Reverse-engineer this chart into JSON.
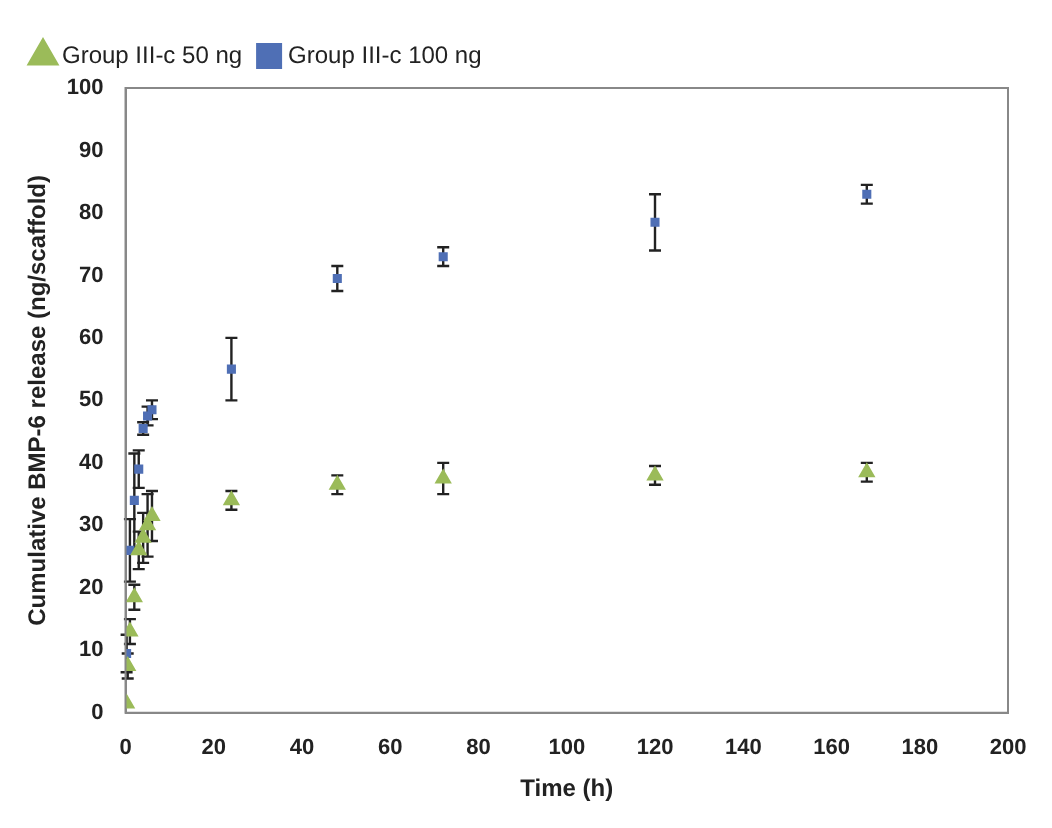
{
  "chart_data": {
    "type": "scatter",
    "xlabel": "Time (h)",
    "ylabel": "Cumulative BMP-6 release (ng/scaffold)",
    "xlim": [
      0,
      200
    ],
    "xticks": [
      0,
      20,
      40,
      60,
      80,
      100,
      120,
      140,
      160,
      180,
      200
    ],
    "ylim": [
      0,
      100
    ],
    "yticks": [
      0,
      10,
      20,
      30,
      40,
      50,
      60,
      70,
      80,
      90,
      100
    ],
    "grid": false,
    "legend": "top left",
    "series": [
      {
        "name": "Group III-c 50 ng",
        "color": "#9bbb59",
        "marker": "triangle",
        "x": [
          0.25,
          0.5,
          1,
          2,
          3,
          4,
          5,
          6,
          24,
          48,
          72,
          120,
          168
        ],
        "values": [
          1.5,
          7.5,
          13,
          18.5,
          26,
          28,
          30,
          31.5,
          34,
          36.5,
          37.5,
          38,
          38.5
        ],
        "errors": [
          null,
          2,
          2,
          2,
          3,
          4,
          5,
          4,
          1.5,
          1.5,
          2.5,
          1.5,
          1.5
        ]
      },
      {
        "name": "Group III-c 100 ng",
        "color": "#4f6fb5",
        "marker": "square",
        "x": [
          0.25,
          0.75,
          1,
          2,
          3,
          4,
          5,
          6,
          24,
          48,
          72,
          120,
          168
        ],
        "values": [
          9.5,
          null,
          26,
          34,
          39,
          45.5,
          47.5,
          48.5,
          55,
          69.5,
          73,
          78.5,
          83
        ],
        "errors": [
          3,
          null,
          5,
          7.5,
          3,
          1,
          1.5,
          1.5,
          5,
          2,
          1.5,
          4.5,
          1.5
        ]
      }
    ]
  }
}
